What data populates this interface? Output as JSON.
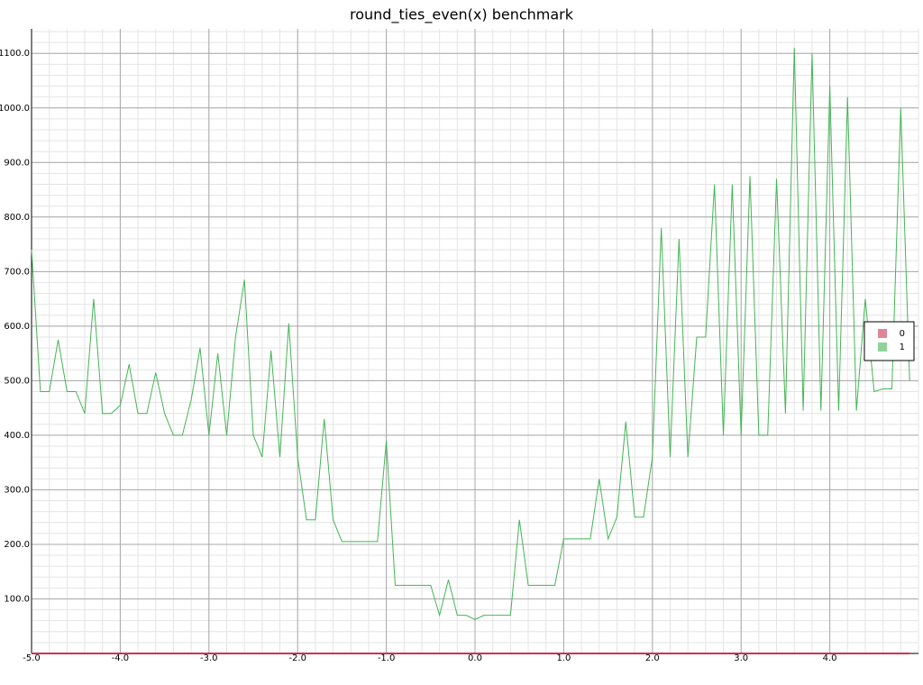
{
  "chart_data": {
    "type": "line",
    "title": "round_ties_even(x) benchmark",
    "x": [
      -5.0,
      -4.9,
      -4.8,
      -4.7,
      -4.6,
      -4.5,
      -4.4,
      -4.3,
      -4.2,
      -4.1,
      -4.0,
      -3.9,
      -3.8,
      -3.7,
      -3.6,
      -3.5,
      -3.4,
      -3.3,
      -3.2,
      -3.1,
      -3.0,
      -2.9,
      -2.8,
      -2.7,
      -2.6,
      -2.5,
      -2.4,
      -2.3,
      -2.2,
      -2.1,
      -2.0,
      -1.9,
      -1.8,
      -1.7,
      -1.6,
      -1.5,
      -1.4,
      -1.3,
      -1.2,
      -1.1,
      -1.0,
      -0.9,
      -0.8,
      -0.7,
      -0.6,
      -0.5,
      -0.4,
      -0.3,
      -0.2,
      -0.1,
      0.0,
      0.1,
      0.2,
      0.3,
      0.4,
      0.5,
      0.6,
      0.7,
      0.8,
      0.9,
      1.0,
      1.1,
      1.2,
      1.3,
      1.4,
      1.5,
      1.6,
      1.7,
      1.8,
      1.9,
      2.0,
      2.1,
      2.2,
      2.3,
      2.4,
      2.5,
      2.6,
      2.7,
      2.8,
      2.9,
      3.0,
      3.1,
      3.2,
      3.3,
      3.4,
      3.5,
      3.6,
      3.7,
      3.8,
      3.9,
      4.0,
      4.1,
      4.2,
      4.3,
      4.4,
      4.5,
      4.6,
      4.7,
      4.8,
      4.9
    ],
    "series": [
      {
        "name": "0",
        "color": "#cc3355",
        "values": [
          0,
          0,
          0,
          0,
          0,
          0,
          0,
          0,
          0,
          0,
          0,
          0,
          0,
          0,
          0,
          0,
          0,
          0,
          0,
          0,
          0,
          0,
          0,
          0,
          0,
          0,
          0,
          0,
          0,
          0,
          0,
          0,
          0,
          0,
          0,
          0,
          0,
          0,
          0,
          0,
          0,
          0,
          0,
          0,
          0,
          0,
          0,
          0,
          0,
          0,
          0,
          0,
          0,
          0,
          0,
          0,
          0,
          0,
          0,
          0,
          0,
          0,
          0,
          0,
          0,
          0,
          0,
          0,
          0,
          0,
          0,
          0,
          0,
          0,
          0,
          0,
          0,
          0,
          0,
          0,
          0,
          0,
          0,
          0,
          0,
          0,
          0,
          0,
          0,
          0,
          0,
          0,
          0,
          0,
          0,
          0,
          0,
          0,
          0,
          0
        ]
      },
      {
        "name": "1",
        "color": "#44b555",
        "values": [
          740,
          480,
          480,
          575,
          480,
          480,
          440,
          650,
          440,
          440,
          455,
          530,
          440,
          440,
          515,
          440,
          400,
          400,
          465,
          560,
          400,
          550,
          400,
          580,
          685,
          400,
          360,
          555,
          360,
          605,
          360,
          245,
          245,
          430,
          245,
          205,
          205,
          205,
          205,
          205,
          390,
          125,
          125,
          125,
          125,
          125,
          70,
          135,
          70,
          70,
          62,
          70,
          70,
          70,
          70,
          245,
          125,
          125,
          125,
          125,
          210,
          210,
          210,
          210,
          320,
          210,
          250,
          425,
          250,
          250,
          360,
          780,
          360,
          760,
          360,
          580,
          580,
          860,
          400,
          860,
          400,
          875,
          400,
          400,
          870,
          440,
          1110,
          445,
          1100,
          445,
          1040,
          445,
          1020,
          445,
          650,
          480,
          485,
          485,
          1000,
          500
        ]
      }
    ],
    "xlim": [
      -5,
      5
    ],
    "ylim": [
      0,
      1145
    ],
    "xticks": [
      {
        "value": -5,
        "label": "-5.0"
      },
      {
        "value": -4,
        "label": "-4.0"
      },
      {
        "value": -3,
        "label": "-3.0"
      },
      {
        "value": -2,
        "label": "-2.0"
      },
      {
        "value": -1,
        "label": "-1.0"
      },
      {
        "value": 0,
        "label": "0.0"
      },
      {
        "value": 1,
        "label": "1.0"
      },
      {
        "value": 2,
        "label": "2.0"
      },
      {
        "value": 3,
        "label": "3.0"
      },
      {
        "value": 4,
        "label": "4.0"
      }
    ],
    "yticks": [
      {
        "value": 100,
        "label": "100.0"
      },
      {
        "value": 200,
        "label": "200.0"
      },
      {
        "value": 300,
        "label": "300.0"
      },
      {
        "value": 400,
        "label": "400.0"
      },
      {
        "value": 500,
        "label": "500.0"
      },
      {
        "value": 600,
        "label": "600.0"
      },
      {
        "value": 700,
        "label": "700.0"
      },
      {
        "value": 800,
        "label": "800.0"
      },
      {
        "value": 900,
        "label": "900.0"
      },
      {
        "value": 1000,
        "label": "1000.0"
      },
      {
        "value": 1100,
        "label": "1100.0"
      }
    ],
    "grid": true,
    "legend": "right"
  }
}
